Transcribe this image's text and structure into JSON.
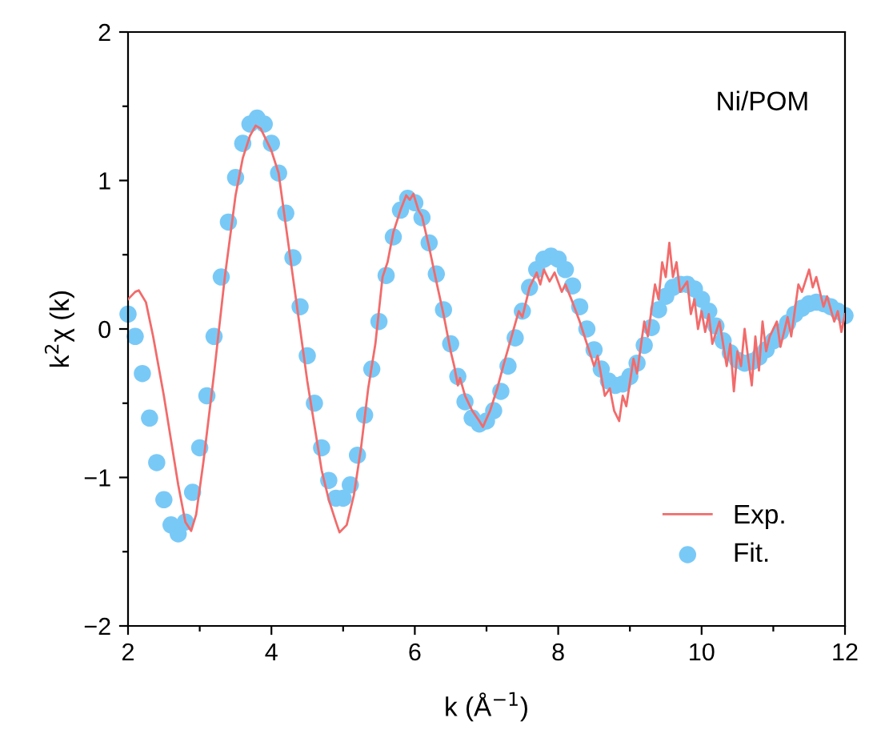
{
  "chart_data": {
    "type": "line",
    "xlabel": "k (Å$^{−1}$)",
    "ylabel": "k$^{2}$χ (k)",
    "annotations": [
      "Ni/POM"
    ],
    "xlim": [
      2,
      12
    ],
    "ylim": [
      -2,
      2
    ],
    "xticks": [
      2,
      {
        "value": 3,
        "label": null
      },
      4,
      {
        "value": 5,
        "label": null
      },
      6,
      {
        "value": 7,
        "label": null
      },
      8,
      {
        "value": 9,
        "label": null
      },
      10,
      {
        "value": 11,
        "label": null
      },
      12
    ],
    "yticks": [
      {
        "value": -2,
        "label": "−2"
      },
      {
        "value": -1.5,
        "label": null
      },
      {
        "value": -1,
        "label": "−1"
      },
      {
        "value": -0.5,
        "label": null
      },
      0,
      {
        "value": 0.5,
        "label": null
      },
      1,
      {
        "value": 1.5,
        "label": null
      },
      2
    ],
    "grid": false,
    "legend": "bottom right",
    "series": [
      {
        "name": "Exp.",
        "color": "#f26b6b",
        "marker": "none",
        "line_style": "solid",
        "x": [
          2.0,
          2.1,
          2.15,
          2.25,
          2.35,
          2.5,
          2.6,
          2.7,
          2.8,
          2.88,
          2.95,
          3.05,
          3.2,
          3.35,
          3.5,
          3.6,
          3.7,
          3.78,
          3.85,
          4.0,
          4.1,
          4.2,
          4.3,
          4.4,
          4.5,
          4.6,
          4.7,
          4.8,
          4.9,
          4.95,
          5.05,
          5.15,
          5.25,
          5.35,
          5.45,
          5.55,
          5.62,
          5.7,
          5.8,
          5.88,
          5.93,
          5.98,
          6.05,
          6.1,
          6.2,
          6.3,
          6.4,
          6.5,
          6.55,
          6.6,
          6.63,
          6.7,
          6.8,
          6.9,
          6.95,
          7.05,
          7.15,
          7.25,
          7.35,
          7.45,
          7.5,
          7.6,
          7.7,
          7.75,
          7.8,
          7.88,
          7.95,
          8.05,
          8.1,
          8.2,
          8.3,
          8.4,
          8.5,
          8.55,
          8.65,
          8.72,
          8.78,
          8.85,
          8.9,
          8.95,
          9.05,
          9.1,
          9.2,
          9.25,
          9.35,
          9.4,
          9.45,
          9.5,
          9.55,
          9.6,
          9.65,
          9.7,
          9.8,
          9.85,
          9.9,
          9.95,
          10.0,
          10.05,
          10.1,
          10.15,
          10.25,
          10.35,
          10.4,
          10.45,
          10.5,
          10.55,
          10.6,
          10.65,
          10.7,
          10.75,
          10.8,
          10.85,
          10.9,
          10.95,
          11.05,
          11.1,
          11.2,
          11.25,
          11.35,
          11.4,
          11.5,
          11.55,
          11.6,
          11.7,
          11.75,
          11.85,
          11.9,
          11.95,
          12.0
        ],
        "values": [
          0.2,
          0.25,
          0.26,
          0.18,
          -0.05,
          -0.45,
          -0.75,
          -1.05,
          -1.3,
          -1.36,
          -1.25,
          -0.9,
          -0.3,
          0.35,
          0.9,
          1.15,
          1.3,
          1.37,
          1.35,
          1.2,
          1.05,
          0.7,
          0.35,
          0.0,
          -0.35,
          -0.65,
          -0.95,
          -1.15,
          -1.3,
          -1.37,
          -1.32,
          -1.12,
          -0.8,
          -0.4,
          -0.1,
          0.35,
          0.45,
          0.65,
          0.8,
          0.9,
          0.87,
          0.91,
          0.8,
          0.76,
          0.55,
          0.32,
          0.1,
          -0.15,
          -0.25,
          -0.38,
          -0.33,
          -0.45,
          -0.55,
          -0.62,
          -0.66,
          -0.55,
          -0.4,
          -0.22,
          -0.05,
          0.12,
          0.08,
          0.28,
          0.38,
          0.3,
          0.4,
          0.32,
          0.38,
          0.25,
          0.3,
          0.18,
          0.05,
          -0.1,
          -0.25,
          -0.18,
          -0.45,
          -0.4,
          -0.55,
          -0.62,
          -0.45,
          -0.52,
          -0.2,
          -0.3,
          0.05,
          -0.05,
          0.3,
          0.2,
          0.45,
          0.35,
          0.58,
          0.35,
          0.45,
          0.25,
          0.32,
          0.1,
          0.2,
          0.0,
          0.12,
          -0.02,
          0.1,
          -0.1,
          0.05,
          -0.25,
          -0.1,
          -0.42,
          -0.15,
          -0.25,
          0.0,
          -0.2,
          -0.38,
          -0.05,
          -0.28,
          0.05,
          -0.15,
          -0.05,
          0.05,
          -0.12,
          0.08,
          -0.05,
          0.3,
          0.25,
          0.4,
          0.28,
          0.35,
          0.15,
          0.22,
          0.05,
          0.12,
          -0.02,
          0.1
        ]
      },
      {
        "name": "Fit.",
        "type": "scatter",
        "color": "#79c9f7",
        "marker": "circle",
        "x": [
          2.0,
          2.1,
          2.2,
          2.3,
          2.4,
          2.5,
          2.6,
          2.7,
          2.8,
          2.9,
          3.0,
          3.1,
          3.2,
          3.3,
          3.4,
          3.5,
          3.6,
          3.7,
          3.8,
          3.9,
          4.0,
          4.1,
          4.2,
          4.3,
          4.4,
          4.5,
          4.6,
          4.7,
          4.8,
          4.9,
          5.0,
          5.1,
          5.2,
          5.3,
          5.4,
          5.5,
          5.6,
          5.7,
          5.8,
          5.9,
          6.0,
          6.1,
          6.2,
          6.3,
          6.4,
          6.5,
          6.6,
          6.7,
          6.8,
          6.9,
          7.0,
          7.1,
          7.2,
          7.3,
          7.4,
          7.5,
          7.6,
          7.7,
          7.8,
          7.9,
          8.0,
          8.1,
          8.2,
          8.3,
          8.4,
          8.5,
          8.6,
          8.7,
          8.8,
          8.9,
          9.0,
          9.1,
          9.2,
          9.3,
          9.4,
          9.5,
          9.6,
          9.7,
          9.8,
          9.9,
          10.0,
          10.1,
          10.2,
          10.3,
          10.4,
          10.5,
          10.6,
          10.7,
          10.8,
          10.9,
          11.0,
          11.1,
          11.2,
          11.3,
          11.4,
          11.5,
          11.6,
          11.7,
          11.8,
          11.9,
          12.0
        ],
        "values": [
          0.1,
          -0.05,
          -0.3,
          -0.6,
          -0.9,
          -1.15,
          -1.32,
          -1.38,
          -1.3,
          -1.1,
          -0.8,
          -0.45,
          -0.05,
          0.35,
          0.72,
          1.02,
          1.25,
          1.38,
          1.42,
          1.38,
          1.25,
          1.05,
          0.78,
          0.48,
          0.15,
          -0.18,
          -0.5,
          -0.8,
          -1.02,
          -1.14,
          -1.14,
          -1.05,
          -0.85,
          -0.58,
          -0.27,
          0.05,
          0.36,
          0.62,
          0.8,
          0.88,
          0.85,
          0.75,
          0.58,
          0.37,
          0.13,
          -0.1,
          -0.32,
          -0.49,
          -0.6,
          -0.64,
          -0.62,
          -0.55,
          -0.42,
          -0.25,
          -0.06,
          0.12,
          0.28,
          0.4,
          0.47,
          0.49,
          0.47,
          0.4,
          0.29,
          0.15,
          0.0,
          -0.14,
          -0.27,
          -0.35,
          -0.38,
          -0.37,
          -0.32,
          -0.23,
          -0.11,
          0.01,
          0.13,
          0.22,
          0.28,
          0.3,
          0.3,
          0.27,
          0.2,
          0.12,
          0.02,
          -0.08,
          -0.16,
          -0.21,
          -0.23,
          -0.22,
          -0.19,
          -0.14,
          -0.08,
          -0.02,
          0.04,
          0.1,
          0.14,
          0.17,
          0.18,
          0.17,
          0.15,
          0.12,
          0.09
        ]
      }
    ]
  }
}
